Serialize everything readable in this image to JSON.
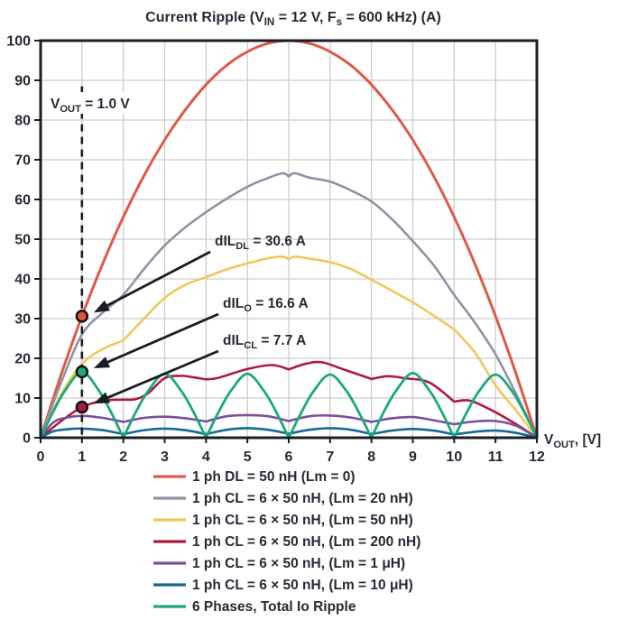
{
  "title_rich": [
    [
      "t",
      "Current Ripple (V"
    ],
    [
      "s",
      "IN"
    ],
    [
      "t",
      " = 12 V, F"
    ],
    [
      "s",
      "s"
    ],
    [
      "t",
      " = 600 kHz) (A)"
    ]
  ],
  "colors": {
    "text": "#262a35",
    "axis": "#1a1d24",
    "grid": "#cccccc",
    "arrow": "#1a1d24"
  },
  "chart_data": {
    "type": "line",
    "x_axis": {
      "min": 0,
      "max": 12,
      "tick_step": 1,
      "tick_labels": [
        "0",
        "1",
        "2",
        "3",
        "4",
        "5",
        "6",
        "7",
        "8",
        "9",
        "10",
        "11",
        "12"
      ],
      "label_rich": [
        [
          "t",
          "V"
        ],
        [
          "s",
          "OUT"
        ],
        [
          "t",
          ", [V]"
        ]
      ]
    },
    "y_axis": {
      "min": 0,
      "max": 100,
      "tick_step": 10,
      "tick_labels": [
        "0",
        "10",
        "20",
        "30",
        "40",
        "50",
        "60",
        "70",
        "80",
        "90",
        "100"
      ]
    },
    "grid": true,
    "legend_position": "bottom",
    "series": [
      {
        "name": "dl-50nH",
        "label": "1 ph DL = 50 nH (Lm = 0)",
        "color": "#dc5a47",
        "width": 3,
        "cusps": [],
        "points": [
          [
            0,
            0
          ],
          [
            0.5,
            16
          ],
          [
            1,
            30.6
          ],
          [
            1.5,
            43.8
          ],
          [
            2,
            55.6
          ],
          [
            2.5,
            66
          ],
          [
            3,
            75
          ],
          [
            3.5,
            82.6
          ],
          [
            4,
            88.9
          ],
          [
            4.5,
            93.8
          ],
          [
            5,
            97.2
          ],
          [
            5.5,
            99.3
          ],
          [
            6,
            100
          ],
          [
            6.5,
            99.3
          ],
          [
            7,
            97.2
          ],
          [
            7.5,
            93.8
          ],
          [
            8,
            88.9
          ],
          [
            8.5,
            82.6
          ],
          [
            9,
            75
          ],
          [
            9.5,
            66
          ],
          [
            10,
            55.6
          ],
          [
            10.5,
            43.8
          ],
          [
            11,
            30.6
          ],
          [
            11.5,
            16
          ],
          [
            12,
            0
          ]
        ]
      },
      {
        "name": "cl-20nH",
        "label": "1 ph CL = 6 × 50 nH, (Lm = 20 nH)",
        "color": "#8f93a3",
        "width": 2.6,
        "cusps": [
          6
        ],
        "points": [
          [
            0,
            0
          ],
          [
            0.5,
            14
          ],
          [
            1,
            26
          ],
          [
            1.5,
            31.5
          ],
          [
            2,
            36
          ],
          [
            2.5,
            42.5
          ],
          [
            3,
            48.4
          ],
          [
            3.5,
            53
          ],
          [
            4,
            56.8
          ],
          [
            4.5,
            60.2
          ],
          [
            5,
            63.2
          ],
          [
            5.5,
            65.4
          ],
          [
            5.85,
            66.6
          ],
          [
            6,
            65.8
          ],
          [
            6.15,
            66.6
          ],
          [
            6.5,
            65.5
          ],
          [
            7,
            64.5
          ],
          [
            7.5,
            62.3
          ],
          [
            8,
            59.5
          ],
          [
            8.5,
            55
          ],
          [
            9,
            49.5
          ],
          [
            9.5,
            43.5
          ],
          [
            10,
            36
          ],
          [
            10.5,
            29
          ],
          [
            11,
            21
          ],
          [
            11.5,
            11
          ],
          [
            12,
            0
          ]
        ]
      },
      {
        "name": "cl-50nH",
        "label": "1 ph CL = 6 × 50 nH, (Lm = 50 nH)",
        "color": "#f1c75c",
        "width": 2.6,
        "cusps": [
          2,
          4,
          6,
          8,
          10
        ],
        "points": [
          [
            0,
            0
          ],
          [
            0.5,
            11
          ],
          [
            1,
            18.6
          ],
          [
            1.5,
            22.3
          ],
          [
            2,
            24.5
          ],
          [
            2.5,
            30
          ],
          [
            3,
            35.2
          ],
          [
            3.5,
            38.5
          ],
          [
            4,
            40.4
          ],
          [
            4.5,
            42.4
          ],
          [
            5,
            43.9
          ],
          [
            5.5,
            45.2
          ],
          [
            5.85,
            45.6
          ],
          [
            6,
            44.9
          ],
          [
            6.15,
            45.6
          ],
          [
            6.5,
            45.1
          ],
          [
            7,
            44.2
          ],
          [
            7.5,
            42.5
          ],
          [
            8,
            39.8
          ],
          [
            8.5,
            37
          ],
          [
            9,
            34.1
          ],
          [
            9.5,
            30.8
          ],
          [
            10,
            27.3
          ],
          [
            10.5,
            21.5
          ],
          [
            11,
            13.2
          ],
          [
            11.5,
            6.8
          ],
          [
            12,
            0
          ]
        ]
      },
      {
        "name": "cl-200nH",
        "label": "1 ph CL = 6 × 50 nH, (Lm = 200 nH)",
        "color": "#ad1c3f",
        "width": 2.6,
        "cusps": [
          2,
          4,
          6,
          8,
          10
        ],
        "points": [
          [
            0,
            0
          ],
          [
            0.5,
            4.2
          ],
          [
            1,
            7.7
          ],
          [
            1.5,
            9.3
          ],
          [
            2,
            9.6
          ],
          [
            2.3,
            9.7
          ],
          [
            2.6,
            11.2
          ],
          [
            3,
            15
          ],
          [
            3.4,
            15.6
          ],
          [
            3.7,
            15.2
          ],
          [
            4,
            14.7
          ],
          [
            4.3,
            15.1
          ],
          [
            5,
            17.3
          ],
          [
            5.6,
            18.3
          ],
          [
            6,
            17.2
          ],
          [
            6.4,
            18.6
          ],
          [
            6.8,
            19
          ],
          [
            7.3,
            17.3
          ],
          [
            8,
            14.8
          ],
          [
            8.4,
            15.5
          ],
          [
            8.8,
            15
          ],
          [
            9.4,
            13.9
          ],
          [
            10,
            9.1
          ],
          [
            10.4,
            9.3
          ],
          [
            11,
            6.4
          ],
          [
            11.5,
            3.4
          ],
          [
            12,
            0
          ]
        ]
      },
      {
        "name": "cl-1uH",
        "label": "1 ph CL = 6 × 50 nH, (Lm = 1 μH)",
        "color": "#7c4f99",
        "width": 2.6,
        "cusps": [
          2,
          4,
          6,
          8,
          10
        ],
        "points": [
          [
            0,
            0
          ],
          [
            0.3,
            3.8
          ],
          [
            0.6,
            5
          ],
          [
            1,
            5.5
          ],
          [
            1.5,
            5
          ],
          [
            2,
            4
          ],
          [
            2.5,
            5
          ],
          [
            3,
            5.3
          ],
          [
            3.5,
            4.9
          ],
          [
            4,
            4.1
          ],
          [
            4.5,
            5.4
          ],
          [
            5,
            5.7
          ],
          [
            5.5,
            5.4
          ],
          [
            6,
            4.2
          ],
          [
            6.5,
            5.4
          ],
          [
            7,
            5.6
          ],
          [
            7.5,
            5.1
          ],
          [
            8,
            4
          ],
          [
            8.5,
            4.9
          ],
          [
            9,
            5.2
          ],
          [
            9.5,
            4.4
          ],
          [
            10,
            3.4
          ],
          [
            10.5,
            4.1
          ],
          [
            11,
            4.2
          ],
          [
            11.5,
            3
          ],
          [
            12,
            0
          ]
        ]
      },
      {
        "name": "cl-10uH",
        "label": "1 ph CL = 6 × 50 nH, (Lm = 10 μH)",
        "color": "#156a92",
        "width": 2.6,
        "cusps": [
          2,
          4,
          6,
          8,
          10
        ],
        "points": [
          [
            0,
            0
          ],
          [
            0.3,
            1.6
          ],
          [
            0.6,
            2.1
          ],
          [
            1,
            2.3
          ],
          [
            1.5,
            1.9
          ],
          [
            2,
            0.9
          ],
          [
            2.5,
            1.9
          ],
          [
            3,
            2.3
          ],
          [
            3.5,
            1.9
          ],
          [
            4,
            0.9
          ],
          [
            4.5,
            2
          ],
          [
            5,
            2.4
          ],
          [
            5.5,
            2
          ],
          [
            6,
            1
          ],
          [
            6.5,
            2
          ],
          [
            7,
            2.4
          ],
          [
            7.5,
            2
          ],
          [
            8,
            0.9
          ],
          [
            8.5,
            1.8
          ],
          [
            9,
            2.2
          ],
          [
            9.5,
            1.8
          ],
          [
            10,
            0.8
          ],
          [
            10.5,
            1.5
          ],
          [
            11,
            1.8
          ],
          [
            11.5,
            1.2
          ],
          [
            12,
            0
          ]
        ]
      },
      {
        "name": "total-io",
        "label": "6 Phases, Total Io Ripple",
        "color": "#1da87c",
        "width": 2.8,
        "cusps": [
          2,
          4,
          6,
          8,
          10
        ],
        "points": [
          [
            0,
            0
          ],
          [
            0.3,
            6.5
          ],
          [
            0.6,
            12
          ],
          [
            1,
            16.6
          ],
          [
            1.4,
            12
          ],
          [
            1.7,
            6.5
          ],
          [
            2,
            0
          ],
          [
            2.3,
            6.4
          ],
          [
            2.6,
            11.8
          ],
          [
            3,
            16.1
          ],
          [
            3.4,
            11.8
          ],
          [
            3.7,
            6.4
          ],
          [
            4,
            0
          ],
          [
            4.3,
            6.4
          ],
          [
            4.6,
            11.8
          ],
          [
            5,
            16.1
          ],
          [
            5.4,
            11.8
          ],
          [
            5.7,
            6.4
          ],
          [
            6,
            0
          ],
          [
            6.3,
            6.3
          ],
          [
            6.6,
            11.7
          ],
          [
            7,
            15.9
          ],
          [
            7.4,
            11.7
          ],
          [
            7.7,
            6.3
          ],
          [
            8,
            0
          ],
          [
            8.3,
            6.5
          ],
          [
            8.6,
            11.9
          ],
          [
            9,
            16.3
          ],
          [
            9.4,
            11.9
          ],
          [
            9.7,
            6.5
          ],
          [
            10,
            0
          ],
          [
            10.3,
            6.3
          ],
          [
            10.6,
            11.7
          ],
          [
            11,
            15.9
          ],
          [
            11.4,
            11.7
          ],
          [
            11.7,
            6.3
          ],
          [
            12,
            0
          ]
        ]
      }
    ],
    "markers": [
      {
        "x": 1,
        "y": 30.6,
        "color": "#e0523c"
      },
      {
        "x": 1,
        "y": 16.6,
        "color": "#1fab77"
      },
      {
        "x": 1,
        "y": 7.7,
        "color": "#a91c41"
      }
    ],
    "vline": {
      "x": 1,
      "top_value": 88.5,
      "label_rich": [
        [
          "t",
          "V"
        ],
        [
          "s",
          "OUT"
        ],
        [
          "t",
          " = 1.0 V"
        ]
      ]
    },
    "annotations": [
      {
        "rich": [
          [
            "t",
            "dIL"
          ],
          [
            "s",
            "DL"
          ],
          [
            "t",
            " = 30.6 A"
          ]
        ],
        "marker": 0
      },
      {
        "rich": [
          [
            "t",
            "dIL"
          ],
          [
            "s",
            "O"
          ],
          [
            "t",
            " = 16.6 A"
          ]
        ],
        "marker": 1
      },
      {
        "rich": [
          [
            "t",
            "dIL"
          ],
          [
            "s",
            "CL"
          ],
          [
            "t",
            " = 7.7 A"
          ]
        ],
        "marker": 2
      }
    ]
  }
}
